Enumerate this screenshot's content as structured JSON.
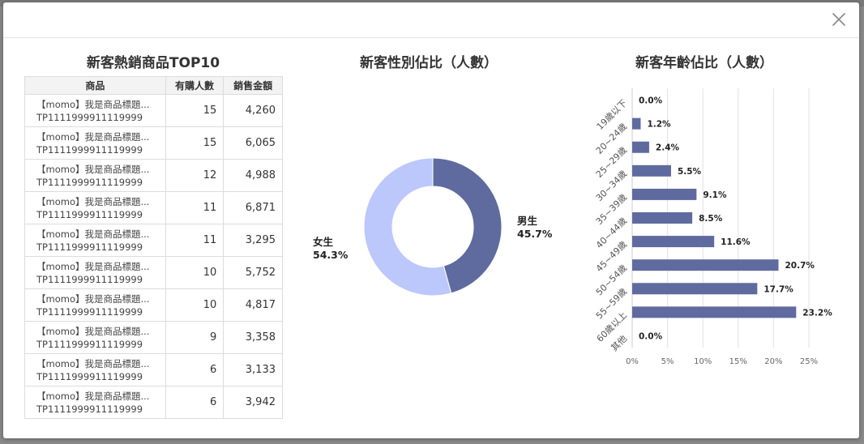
{
  "modal": {
    "close_icon": "close-icon"
  },
  "top10": {
    "title": "新客熱銷商品TOP10",
    "headers": {
      "product": "商品",
      "buyers": "有購人數",
      "sales": "銷售金額"
    },
    "rows": [
      {
        "name": "【momo】我是商品標題...",
        "code": "TP1111999911119999",
        "buyers": "15",
        "sales": "4,260"
      },
      {
        "name": "【momo】我是商品標題...",
        "code": "TP1111999911119999",
        "buyers": "15",
        "sales": "6,065"
      },
      {
        "name": "【momo】我是商品標題...",
        "code": "TP1111999911119999",
        "buyers": "12",
        "sales": "4,988"
      },
      {
        "name": "【momo】我是商品標題...",
        "code": "TP1111999911119999",
        "buyers": "11",
        "sales": "6,871"
      },
      {
        "name": "【momo】我是商品標題...",
        "code": "TP1111999911119999",
        "buyers": "11",
        "sales": "3,295"
      },
      {
        "name": "【momo】我是商品標題...",
        "code": "TP1111999911119999",
        "buyers": "10",
        "sales": "5,752"
      },
      {
        "name": "【momo】我是商品標題...",
        "code": "TP1111999911119999",
        "buyers": "10",
        "sales": "4,817"
      },
      {
        "name": "【momo】我是商品標題...",
        "code": "TP1111999911119999",
        "buyers": "9",
        "sales": "3,358"
      },
      {
        "name": "【momo】我是商品標題...",
        "code": "TP1111999911119999",
        "buyers": "6",
        "sales": "3,133"
      },
      {
        "name": "【momo】我是商品標題...",
        "code": "TP1111999911119999",
        "buyers": "6",
        "sales": "3,942"
      }
    ]
  },
  "gender": {
    "title": "新客性別佔比（人數）",
    "colors": {
      "male": "#5f6b9e",
      "female": "#bcc7fb"
    }
  },
  "age": {
    "title": "新客年齡佔比（人數）",
    "bar_color": "#5f6b9e"
  },
  "chart_data": [
    {
      "type": "pie",
      "labels": [
        "男生",
        "女生"
      ],
      "values": [
        45.7,
        54.3
      ],
      "value_labels": [
        "45.7%",
        "54.3%"
      ],
      "donut": true
    },
    {
      "type": "bar",
      "orientation": "horizontal",
      "categories": [
        "19歲以下",
        "20~24歲",
        "25~29歲",
        "30~34歲",
        "35~39歲",
        "40~44歲",
        "45~49歲",
        "50~54歲",
        "55~59歲",
        "60歲以上",
        "其他"
      ],
      "values": [
        0.0,
        1.2,
        2.4,
        5.5,
        9.1,
        8.5,
        11.6,
        20.7,
        17.7,
        23.2,
        0.0
      ],
      "value_labels": [
        "0.0%",
        "1.2%",
        "2.4%",
        "5.5%",
        "9.1%",
        "8.5%",
        "11.6%",
        "20.7%",
        "17.7%",
        "23.2%",
        "0.0%"
      ],
      "xticks": [
        "0%",
        "5%",
        "10%",
        "15%",
        "20%",
        "25%"
      ],
      "xlim": [
        0,
        25
      ],
      "grid": true
    }
  ]
}
